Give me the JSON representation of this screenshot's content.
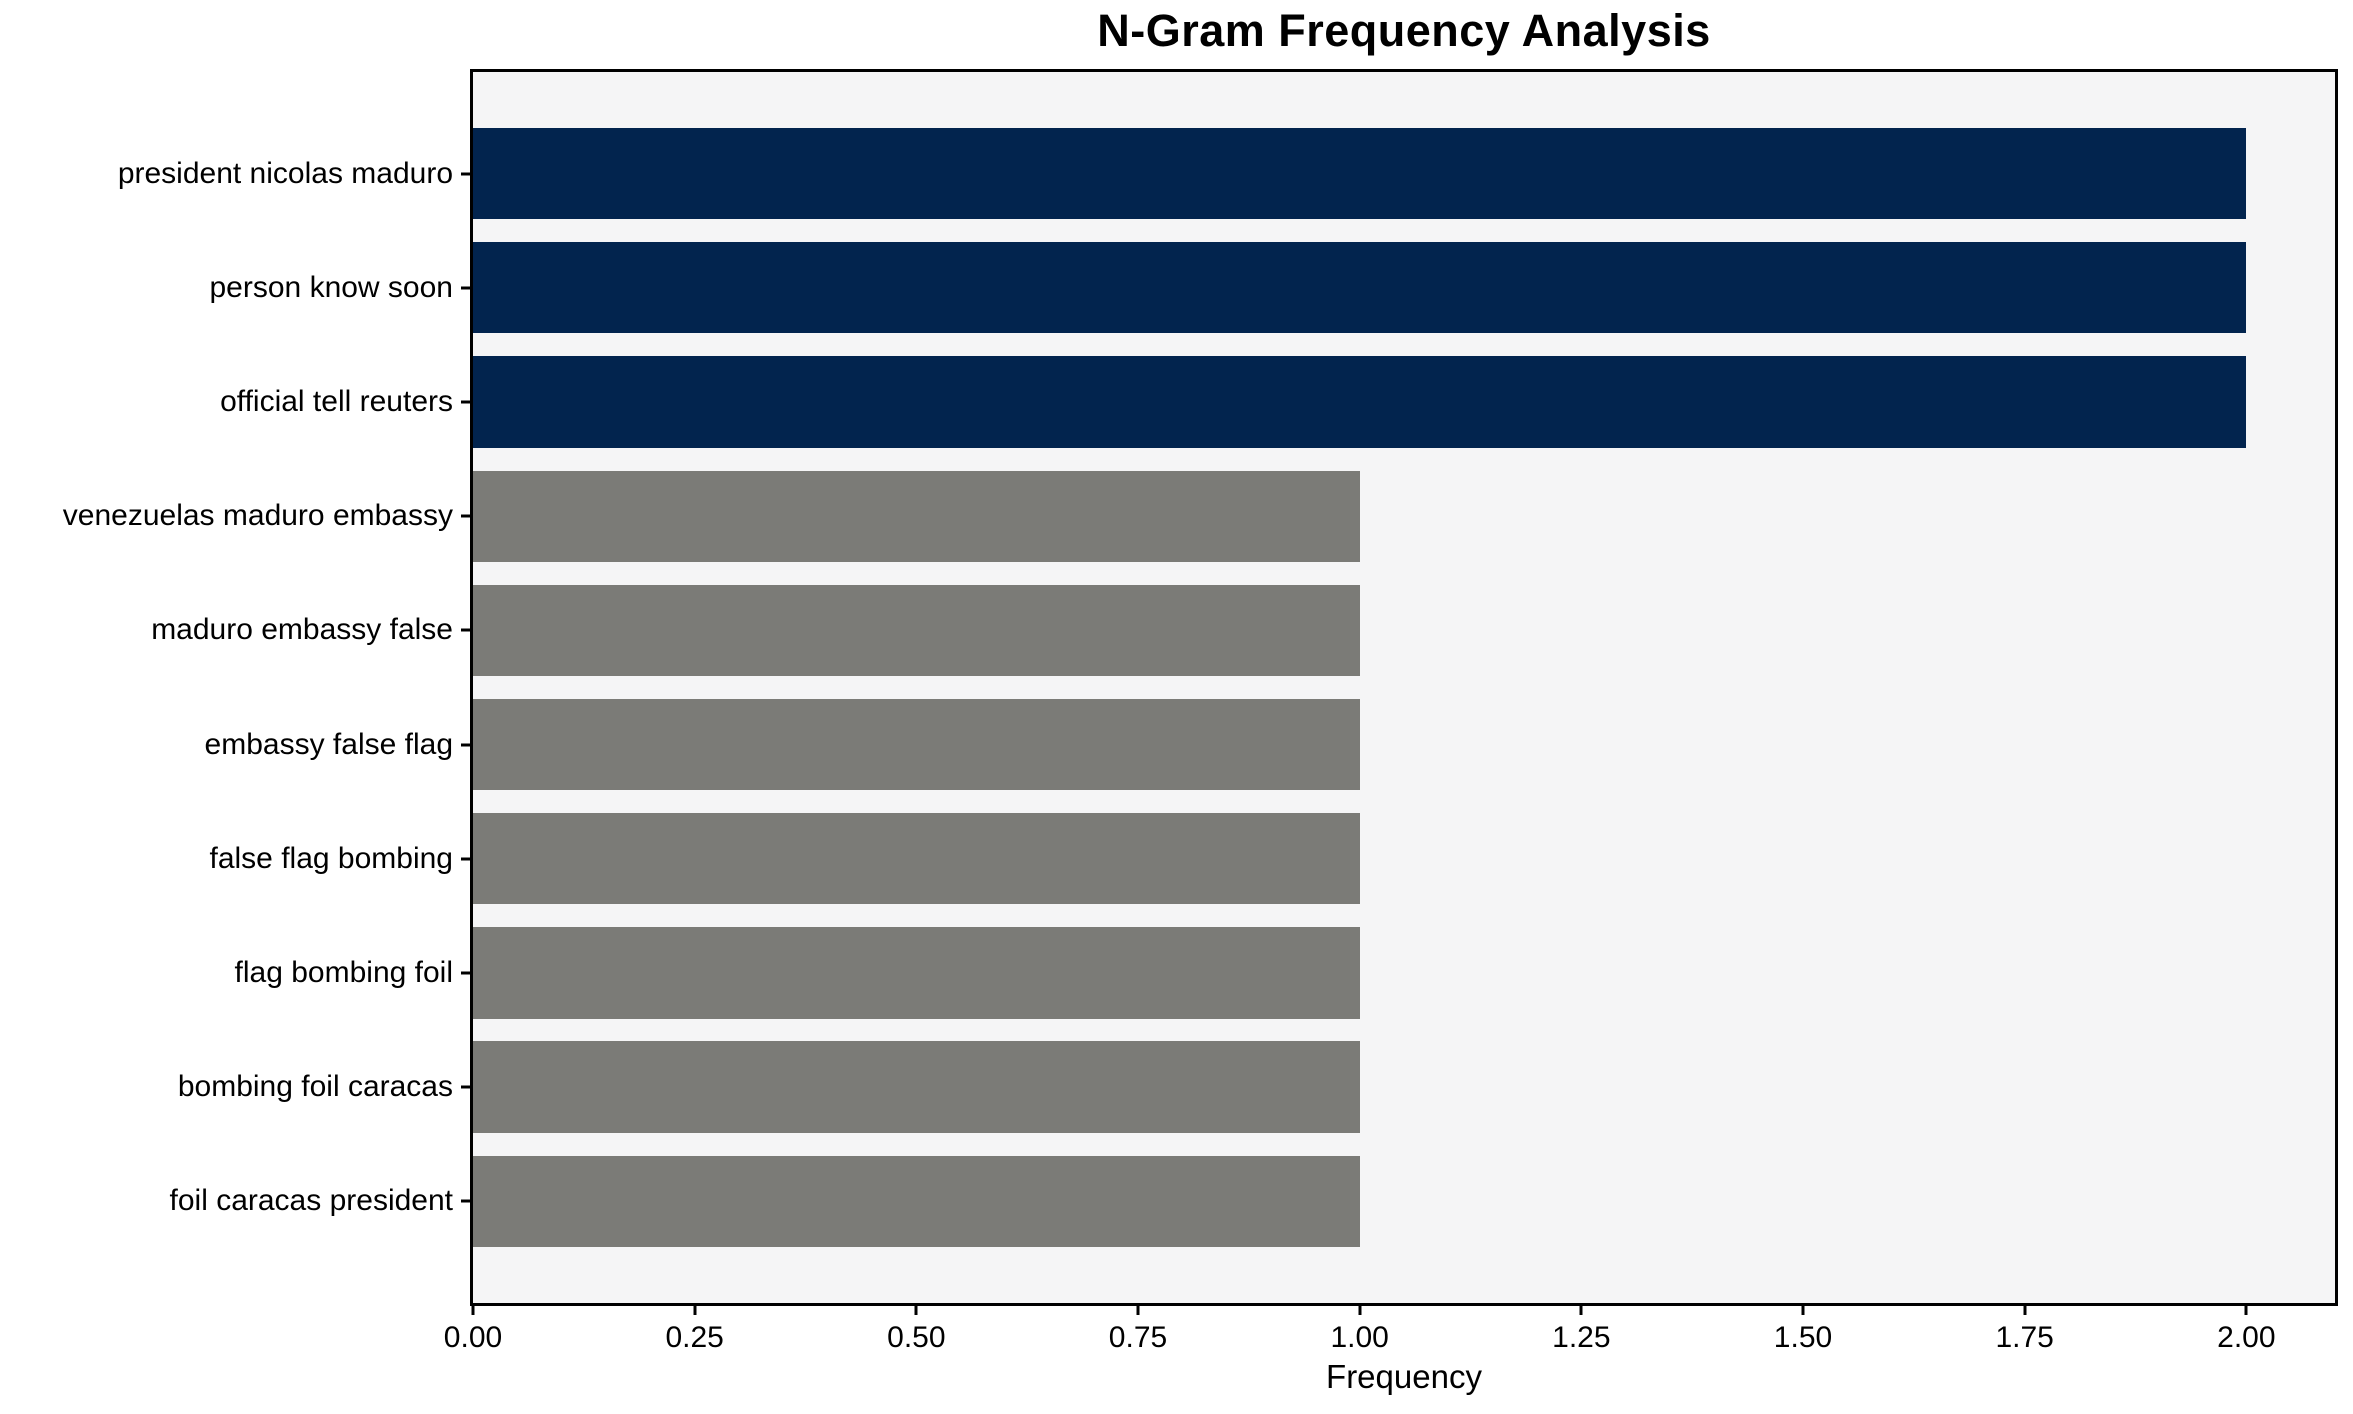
{
  "chart_data": {
    "type": "bar",
    "orientation": "horizontal",
    "title": "N-Gram Frequency Analysis",
    "xlabel": "Frequency",
    "ylabel": "",
    "categories": [
      "president nicolas maduro",
      "person know soon",
      "official tell reuters",
      "venezuelas maduro embassy",
      "maduro embassy false",
      "embassy false flag",
      "false flag bombing",
      "flag bombing foil",
      "bombing foil caracas",
      "foil caracas president"
    ],
    "values": [
      2,
      2,
      2,
      1,
      1,
      1,
      1,
      1,
      1,
      1
    ],
    "bar_colors": [
      "#02244e",
      "#02244e",
      "#02244e",
      "#7b7b77",
      "#7b7b77",
      "#7b7b77",
      "#7b7b77",
      "#7b7b77",
      "#7b7b77",
      "#7b7b77"
    ],
    "xticks": [
      "0.00",
      "0.25",
      "0.50",
      "0.75",
      "1.00",
      "1.25",
      "1.50",
      "1.75",
      "2.00"
    ],
    "xtick_values": [
      0,
      0.25,
      0.5,
      0.75,
      1.0,
      1.25,
      1.5,
      1.75,
      2.0
    ],
    "xlim": [
      0,
      2.1
    ],
    "grid": false,
    "legend": null,
    "colors": {
      "highlight_bar": "#02244e",
      "default_bar": "#7b7b77",
      "plot_background": "#f5f5f6",
      "figure_background": "#ffffff",
      "axis": "#000000",
      "text": "#000000"
    }
  }
}
